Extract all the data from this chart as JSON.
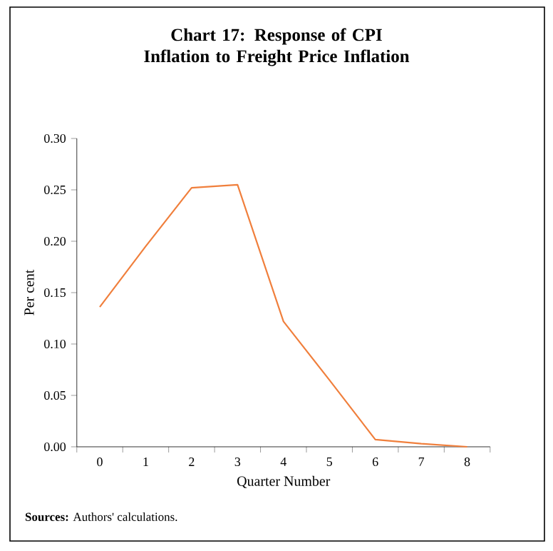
{
  "chart_data": {
    "type": "line",
    "title": "Chart 17: Response of CPI Inflation to Freight Price Inflation",
    "xlabel": "Quarter Number",
    "ylabel": "Per cent",
    "annotations": [
      "**Sources:** Authors' calculations."
    ],
    "categories": [
      "0",
      "1",
      "2",
      "3",
      "4",
      "5",
      "6",
      "7",
      "8"
    ],
    "values": [
      0.136,
      0.195,
      0.252,
      0.255,
      0.122,
      0.065,
      0.007,
      0.003,
      0.0
    ],
    "color": "#f07f3c",
    "marker": "none",
    "ylim": [
      0,
      0.3
    ],
    "yticks": [
      {
        "value": 0,
        "label": "0.00"
      },
      {
        "value": 0.05,
        "label": "0.05"
      },
      {
        "value": 0.1,
        "label": "0.10"
      },
      {
        "value": 0.15,
        "label": "0.15"
      },
      {
        "value": 0.2,
        "label": "0.20"
      },
      {
        "value": 0.25,
        "label": "0.25"
      },
      {
        "value": 0.3,
        "label": "0.30"
      }
    ]
  }
}
